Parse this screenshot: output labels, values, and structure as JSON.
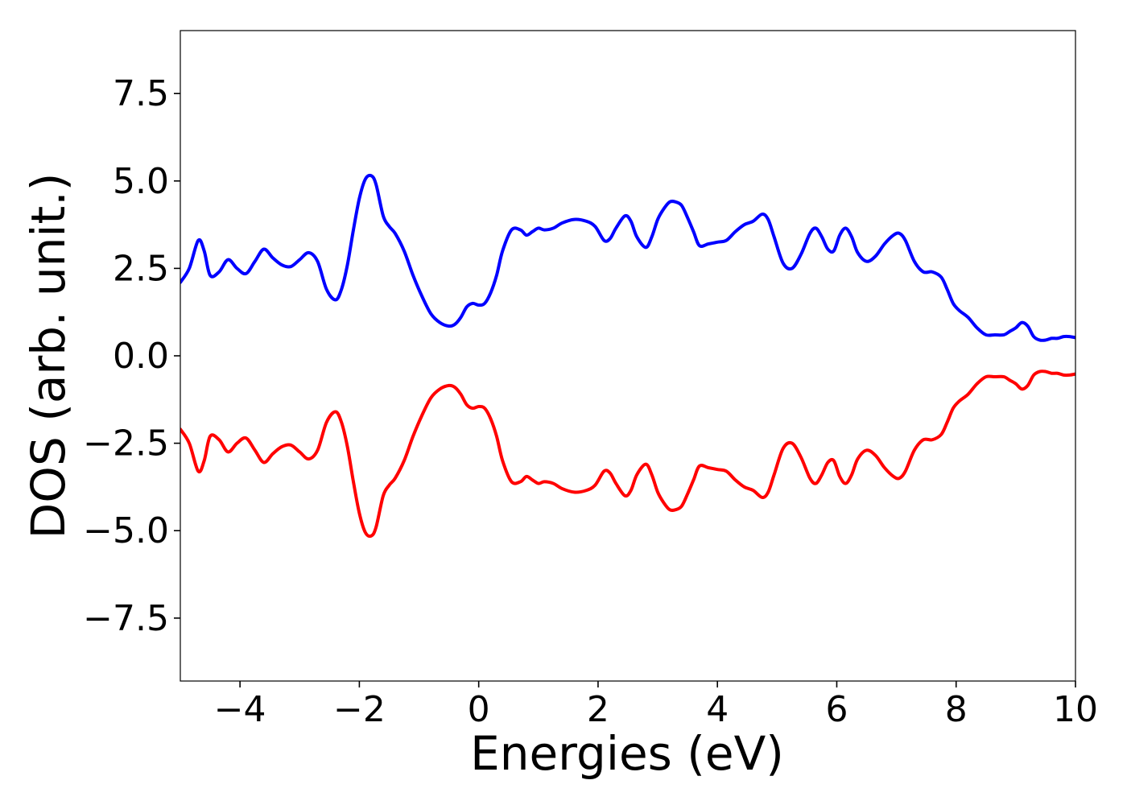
{
  "chart_data": {
    "type": "line",
    "title": "",
    "xlabel": "Energies (eV)",
    "ylabel": "DOS (arb. unit.)",
    "xlim": [
      -5,
      10
    ],
    "ylim": [
      -9.3,
      9.3
    ],
    "xticks": [
      -4,
      -2,
      0,
      2,
      4,
      6,
      8,
      10
    ],
    "xtick_labels": [
      "−4",
      "−2",
      "0",
      "2",
      "4",
      "6",
      "8",
      "10"
    ],
    "yticks": [
      7.5,
      5.0,
      2.5,
      0.0,
      -2.5,
      -5.0,
      -7.5
    ],
    "ytick_labels": [
      "7.5",
      "5.0",
      "2.5",
      "0.0",
      "−2.5",
      "−5.0",
      "−7.5"
    ],
    "grid": false,
    "series": [
      {
        "color": "#0000ff",
        "x": [
          -5.0,
          -4.85,
          -4.7,
          -4.6,
          -4.5,
          -4.35,
          -4.2,
          -4.05,
          -3.9,
          -3.75,
          -3.6,
          -3.45,
          -3.3,
          -3.15,
          -3.0,
          -2.85,
          -2.7,
          -2.55,
          -2.4,
          -2.3,
          -2.2,
          -2.1,
          -2.0,
          -1.9,
          -1.8,
          -1.72,
          -1.6,
          -1.5,
          -1.4,
          -1.25,
          -1.1,
          -0.95,
          -0.8,
          -0.65,
          -0.5,
          -0.4,
          -0.3,
          -0.2,
          -0.1,
          0.0,
          0.1,
          0.2,
          0.3,
          0.4,
          0.55,
          0.7,
          0.8,
          0.9,
          1.0,
          1.1,
          1.25,
          1.4,
          1.6,
          1.8,
          1.95,
          2.1,
          2.2,
          2.3,
          2.45,
          2.55,
          2.65,
          2.8,
          2.9,
          3.0,
          3.1,
          3.2,
          3.3,
          3.4,
          3.5,
          3.6,
          3.7,
          3.85,
          4.0,
          4.15,
          4.3,
          4.45,
          4.6,
          4.75,
          4.85,
          4.95,
          5.1,
          5.25,
          5.4,
          5.55,
          5.65,
          5.75,
          5.85,
          5.95,
          6.05,
          6.15,
          6.25,
          6.35,
          6.5,
          6.65,
          6.8,
          6.95,
          7.05,
          7.15,
          7.3,
          7.45,
          7.6,
          7.75,
          7.85,
          7.95,
          8.05,
          8.2,
          8.35,
          8.5,
          8.65,
          8.8,
          8.9,
          9.0,
          9.1,
          9.2,
          9.3,
          9.4,
          9.5,
          9.6,
          9.7,
          9.8,
          9.9,
          10.0
        ],
        "y": [
          2.1,
          2.5,
          3.3,
          3.0,
          2.3,
          2.4,
          2.75,
          2.5,
          2.35,
          2.7,
          3.05,
          2.8,
          2.6,
          2.55,
          2.75,
          2.95,
          2.7,
          1.9,
          1.6,
          1.9,
          2.6,
          3.6,
          4.5,
          5.05,
          5.15,
          4.9,
          4.0,
          3.7,
          3.5,
          3.0,
          2.3,
          1.7,
          1.2,
          0.95,
          0.85,
          0.9,
          1.1,
          1.4,
          1.5,
          1.45,
          1.5,
          1.8,
          2.3,
          3.0,
          3.6,
          3.6,
          3.45,
          3.55,
          3.65,
          3.6,
          3.65,
          3.8,
          3.9,
          3.85,
          3.7,
          3.3,
          3.35,
          3.65,
          4.0,
          3.85,
          3.4,
          3.1,
          3.4,
          3.9,
          4.2,
          4.4,
          4.4,
          4.3,
          3.95,
          3.55,
          3.15,
          3.2,
          3.25,
          3.3,
          3.55,
          3.75,
          3.85,
          4.05,
          3.9,
          3.4,
          2.65,
          2.5,
          2.9,
          3.5,
          3.65,
          3.4,
          3.05,
          3.0,
          3.45,
          3.65,
          3.4,
          2.95,
          2.7,
          2.85,
          3.2,
          3.45,
          3.5,
          3.3,
          2.7,
          2.4,
          2.4,
          2.25,
          1.9,
          1.5,
          1.3,
          1.1,
          0.8,
          0.6,
          0.6,
          0.6,
          0.7,
          0.8,
          0.95,
          0.85,
          0.55,
          0.45,
          0.45,
          0.5,
          0.5,
          0.55,
          0.55,
          0.52
        ]
      },
      {
        "color": "#ff0000",
        "x": [
          -5.0,
          -4.85,
          -4.7,
          -4.6,
          -4.5,
          -4.35,
          -4.2,
          -4.05,
          -3.9,
          -3.75,
          -3.6,
          -3.45,
          -3.3,
          -3.15,
          -3.0,
          -2.85,
          -2.7,
          -2.55,
          -2.4,
          -2.3,
          -2.2,
          -2.1,
          -2.0,
          -1.9,
          -1.8,
          -1.72,
          -1.6,
          -1.5,
          -1.4,
          -1.25,
          -1.1,
          -0.95,
          -0.8,
          -0.65,
          -0.5,
          -0.4,
          -0.3,
          -0.2,
          -0.1,
          0.0,
          0.1,
          0.2,
          0.3,
          0.4,
          0.55,
          0.7,
          0.8,
          0.9,
          1.0,
          1.1,
          1.25,
          1.4,
          1.6,
          1.8,
          1.95,
          2.1,
          2.2,
          2.3,
          2.45,
          2.55,
          2.65,
          2.8,
          2.9,
          3.0,
          3.1,
          3.2,
          3.3,
          3.4,
          3.5,
          3.6,
          3.7,
          3.85,
          4.0,
          4.15,
          4.3,
          4.45,
          4.6,
          4.75,
          4.85,
          4.95,
          5.1,
          5.25,
          5.4,
          5.55,
          5.65,
          5.75,
          5.85,
          5.95,
          6.05,
          6.15,
          6.25,
          6.35,
          6.5,
          6.65,
          6.8,
          6.95,
          7.05,
          7.15,
          7.3,
          7.45,
          7.6,
          7.75,
          7.85,
          7.95,
          8.05,
          8.2,
          8.35,
          8.5,
          8.65,
          8.8,
          8.9,
          9.0,
          9.1,
          9.2,
          9.3,
          9.4,
          9.5,
          9.6,
          9.7,
          9.8,
          9.9,
          10.0
        ],
        "y": [
          -2.1,
          -2.5,
          -3.3,
          -3.0,
          -2.3,
          -2.4,
          -2.75,
          -2.5,
          -2.35,
          -2.7,
          -3.05,
          -2.8,
          -2.6,
          -2.55,
          -2.75,
          -2.95,
          -2.7,
          -1.9,
          -1.6,
          -1.9,
          -2.6,
          -3.6,
          -4.5,
          -5.05,
          -5.15,
          -4.9,
          -4.0,
          -3.7,
          -3.5,
          -3.0,
          -2.3,
          -1.7,
          -1.2,
          -0.95,
          -0.85,
          -0.9,
          -1.1,
          -1.4,
          -1.5,
          -1.45,
          -1.5,
          -1.8,
          -2.3,
          -3.0,
          -3.6,
          -3.6,
          -3.45,
          -3.55,
          -3.65,
          -3.6,
          -3.65,
          -3.8,
          -3.9,
          -3.85,
          -3.7,
          -3.3,
          -3.35,
          -3.65,
          -4.0,
          -3.85,
          -3.4,
          -3.1,
          -3.4,
          -3.9,
          -4.2,
          -4.4,
          -4.4,
          -4.3,
          -3.95,
          -3.55,
          -3.15,
          -3.2,
          -3.25,
          -3.3,
          -3.55,
          -3.75,
          -3.85,
          -4.05,
          -3.9,
          -3.4,
          -2.65,
          -2.5,
          -2.9,
          -3.5,
          -3.65,
          -3.4,
          -3.05,
          -3.0,
          -3.45,
          -3.65,
          -3.4,
          -2.95,
          -2.7,
          -2.85,
          -3.2,
          -3.45,
          -3.5,
          -3.3,
          -2.7,
          -2.4,
          -2.4,
          -2.25,
          -1.9,
          -1.5,
          -1.3,
          -1.1,
          -0.8,
          -0.6,
          -0.6,
          -0.6,
          -0.7,
          -0.8,
          -0.95,
          -0.85,
          -0.55,
          -0.45,
          -0.45,
          -0.5,
          -0.5,
          -0.55,
          -0.55,
          -0.52
        ]
      }
    ]
  }
}
